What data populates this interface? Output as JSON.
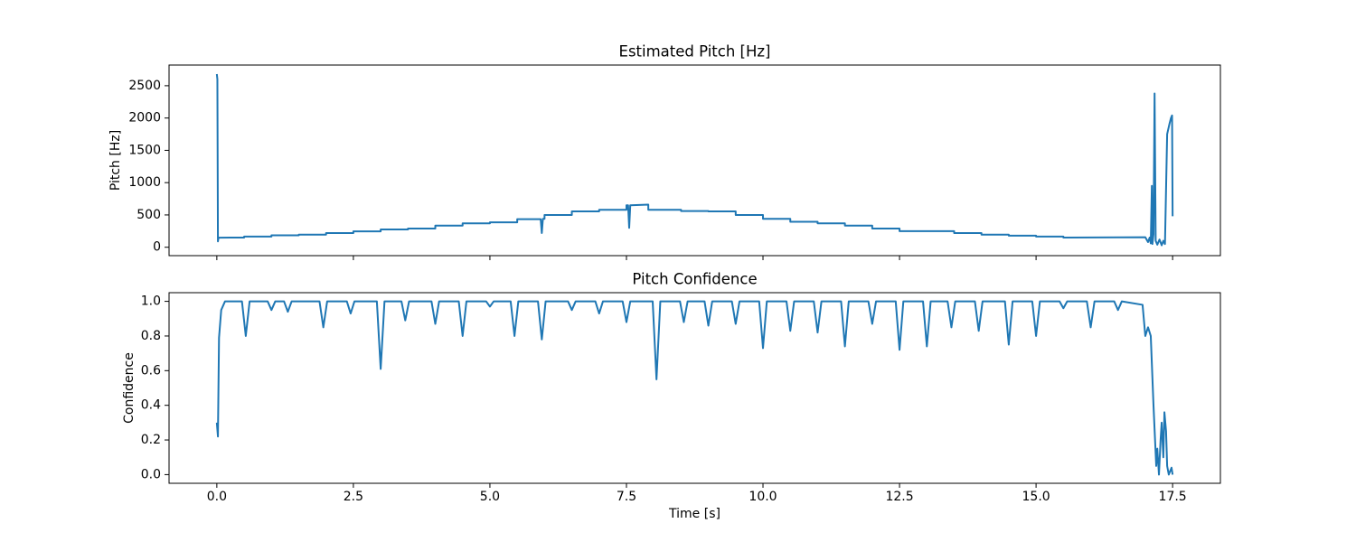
{
  "chart_data": [
    {
      "type": "line",
      "title": "Estimated Pitch [Hz]",
      "ylabel": "Pitch [Hz]",
      "x": [
        0,
        0.01,
        0.02,
        0.03,
        0.5,
        0.5,
        1,
        1,
        1.5,
        1.5,
        2,
        2,
        2.5,
        2.5,
        3,
        3,
        3.5,
        3.5,
        4,
        4,
        4.5,
        4.5,
        5,
        5,
        5.5,
        5.5,
        5.93,
        5.95,
        5.97,
        6,
        6,
        6.5,
        6.5,
        7,
        7,
        7.5,
        7.5,
        7.53,
        7.55,
        7.57,
        7.9,
        7.9,
        8.5,
        8.5,
        9,
        9,
        9.5,
        9.5,
        10,
        10,
        10.5,
        10.5,
        11,
        11,
        11.5,
        11.5,
        12,
        12,
        12.5,
        12.5,
        13,
        13,
        13.5,
        13.5,
        14,
        14,
        14.5,
        14.5,
        15,
        15,
        15.5,
        15.5,
        17,
        17.05,
        17.08,
        17.1,
        17.12,
        17.13,
        17.15,
        17.17,
        17.19,
        17.22,
        17.26,
        17.3,
        17.33,
        17.36,
        17.4,
        17.44,
        17.47,
        17.49,
        17.5
      ],
      "series": [
        {
          "color": "#1f77b4",
          "values": [
            2680,
            2600,
            90,
            148,
            150,
            165,
            165,
            185,
            185,
            195,
            195,
            220,
            220,
            245,
            245,
            275,
            275,
            290,
            290,
            335,
            335,
            370,
            370,
            385,
            385,
            435,
            435,
            220,
            440,
            440,
            500,
            500,
            555,
            555,
            580,
            580,
            650,
            650,
            300,
            650,
            660,
            580,
            580,
            560,
            560,
            555,
            555,
            500,
            500,
            440,
            440,
            395,
            395,
            370,
            370,
            335,
            335,
            290,
            290,
            250,
            250,
            250,
            250,
            220,
            220,
            195,
            195,
            180,
            180,
            165,
            165,
            150,
            155,
            80,
            150,
            60,
            950,
            50,
            200,
            2380,
            100,
            40,
            120,
            30,
            100,
            50,
            1750,
            1900,
            2000,
            2040,
            480
          ]
        }
      ],
      "xlim": [
        -0.875,
        18.375
      ],
      "ylim": [
        -130,
        2820
      ],
      "xticks": [
        0,
        2.5,
        5,
        7.5,
        10,
        12.5,
        15,
        17.5
      ],
      "yticks": [
        0,
        500,
        1000,
        1500,
        2000,
        2500
      ]
    },
    {
      "type": "line",
      "title": "Pitch Confidence",
      "ylabel": "Confidence",
      "xlabel": "Time [s]",
      "x": [
        0,
        0.02,
        0.04,
        0.08,
        0.15,
        0.3,
        0.46,
        0.53,
        0.6,
        0.93,
        1.0,
        1.07,
        1.23,
        1.3,
        1.37,
        1.88,
        1.95,
        2.02,
        2.38,
        2.45,
        2.52,
        2.93,
        3.0,
        3.07,
        3.38,
        3.45,
        3.52,
        3.93,
        4.0,
        4.07,
        4.43,
        4.5,
        4.57,
        4.93,
        5.0,
        5.07,
        5.38,
        5.45,
        5.52,
        5.88,
        5.95,
        6.02,
        6.43,
        6.5,
        6.57,
        6.93,
        7.0,
        7.07,
        7.43,
        7.5,
        7.57,
        7.98,
        8.05,
        8.12,
        8.48,
        8.55,
        8.62,
        8.93,
        9.0,
        9.07,
        9.43,
        9.5,
        9.57,
        9.93,
        10.0,
        10.07,
        10.43,
        10.5,
        10.57,
        10.93,
        11.0,
        11.07,
        11.43,
        11.5,
        11.57,
        11.93,
        12.0,
        12.07,
        12.43,
        12.5,
        12.57,
        12.93,
        13.0,
        13.07,
        13.38,
        13.45,
        13.52,
        13.88,
        13.95,
        14.02,
        14.43,
        14.5,
        14.57,
        14.93,
        15.0,
        15.07,
        15.43,
        15.5,
        15.57,
        15.93,
        16.0,
        16.07,
        16.43,
        16.5,
        16.57,
        16.95,
        17.0,
        17.05,
        17.1,
        17.15,
        17.2,
        17.22,
        17.25,
        17.28,
        17.3,
        17.33,
        17.35,
        17.38,
        17.4,
        17.43,
        17.48,
        17.5
      ],
      "series": [
        {
          "color": "#1f77b4",
          "values": [
            0.3,
            0.22,
            0.79,
            0.95,
            1.0,
            1.0,
            1.0,
            0.8,
            1.0,
            1.0,
            0.95,
            1.0,
            1.0,
            0.94,
            1.0,
            1.0,
            0.85,
            1.0,
            1.0,
            0.93,
            1.0,
            1.0,
            0.61,
            1.0,
            1.0,
            0.89,
            1.0,
            1.0,
            0.87,
            1.0,
            1.0,
            0.8,
            1.0,
            1.0,
            0.97,
            1.0,
            1.0,
            0.8,
            1.0,
            1.0,
            0.78,
            1.0,
            1.0,
            0.95,
            1.0,
            1.0,
            0.93,
            1.0,
            1.0,
            0.88,
            1.0,
            1.0,
            0.55,
            1.0,
            1.0,
            0.88,
            1.0,
            1.0,
            0.86,
            1.0,
            1.0,
            0.87,
            1.0,
            1.0,
            0.73,
            1.0,
            1.0,
            0.83,
            1.0,
            1.0,
            0.82,
            1.0,
            1.0,
            0.74,
            1.0,
            1.0,
            0.87,
            1.0,
            1.0,
            0.72,
            1.0,
            1.0,
            0.74,
            1.0,
            1.0,
            0.85,
            1.0,
            1.0,
            0.83,
            1.0,
            1.0,
            0.75,
            1.0,
            1.0,
            0.8,
            1.0,
            1.0,
            0.96,
            1.0,
            1.0,
            0.85,
            1.0,
            1.0,
            0.95,
            1.0,
            0.98,
            0.8,
            0.85,
            0.8,
            0.4,
            0.05,
            0.15,
            0.0,
            0.2,
            0.3,
            0.1,
            0.36,
            0.25,
            0.05,
            0.0,
            0.04,
            0.0
          ]
        }
      ],
      "xlim": [
        -0.875,
        18.375
      ],
      "ylim": [
        -0.05,
        1.05
      ],
      "xticks": [
        {
          "value": 0,
          "label": "0.0"
        },
        2.5,
        {
          "value": 5,
          "label": "5.0"
        },
        7.5,
        {
          "value": 10,
          "label": "10.0"
        },
        12.5,
        {
          "value": 15,
          "label": "15.0"
        },
        17.5
      ],
      "yticks": [
        {
          "value": 0,
          "label": "0.0"
        },
        0.2,
        0.4,
        0.6,
        0.8,
        {
          "value": 1,
          "label": "1.0"
        }
      ]
    }
  ]
}
